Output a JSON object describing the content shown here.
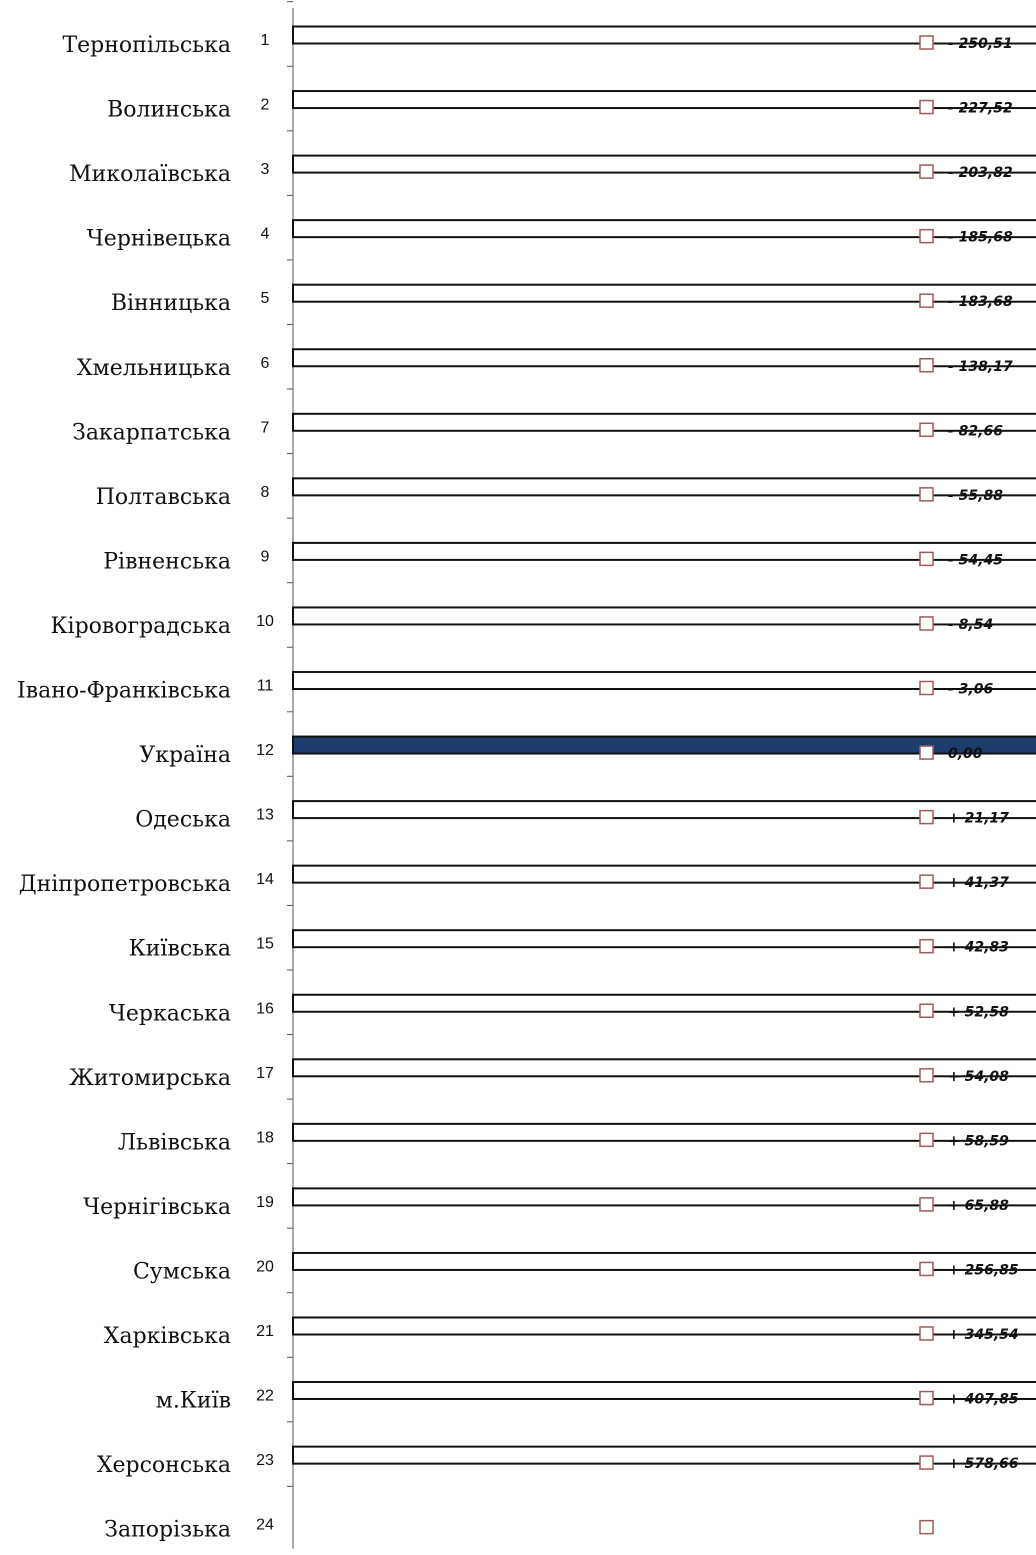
{
  "chart_data": {
    "type": "bar",
    "orientation": "horizontal",
    "categories": [
      "Тернопільська",
      "Волинська",
      "Миколаївська",
      "Чернівецька",
      "Вінницька",
      "Хмельницька",
      "Закарпатська",
      "Полтавська",
      "Рівненська",
      "Кіровоградська",
      "Івано-Франківська",
      "Україна",
      "Одеська",
      "Дніпропетровська",
      "Київська",
      "Черкаська",
      "Житомирська",
      "Львівська",
      "Чернігівська",
      "Сумська",
      "Харківська",
      "м.Київ",
      "Херсонська",
      "Запорізька"
    ],
    "ranks": [
      "1",
      "2",
      "3",
      "4",
      "5",
      "6",
      "7",
      "8",
      "9",
      "10",
      "11",
      "12",
      "13",
      "14",
      "15",
      "16",
      "17",
      "18",
      "19",
      "20",
      "21",
      "22",
      "23",
      "24"
    ],
    "values": [
      2004.11,
      2027.1,
      2050.8,
      2068.94,
      2070.94,
      2116.45,
      2171.96,
      2198.74,
      2200.17,
      2246.08,
      2251.56,
      2254.62,
      2275.79,
      2295.99,
      2297.45,
      2307.2,
      2308.7,
      2313.21,
      2320.5,
      2511.47,
      2600.16,
      2662.47,
      2833.28,
      null
    ],
    "value_labels": [
      "2004,11",
      "2027,10",
      "2050,80",
      "2068,94",
      "2070,94",
      "2116,45",
      "2171,96",
      "2198,74",
      "2200,17",
      "2246,08",
      "2251,56",
      "2254,62",
      "2275,79",
      "2295,99",
      "2297,45",
      "2307,20",
      "2308,70",
      "2313,21",
      "2320,50",
      "2511,47",
      "2600,16",
      "2662,47",
      "2833,28",
      ""
    ],
    "deviation_labels": [
      "- 250,51",
      "- 227,52",
      "- 203,82",
      "- 185,68",
      "- 183,68",
      "- 138,17",
      "- 82,66",
      "- 55,88",
      "- 54,45",
      "- 8,54",
      "- 3,06",
      "0,00",
      "+ 21,17",
      "+ 41,37",
      "+ 42,83",
      "+ 52,58",
      "+ 54,08",
      "+ 58,59",
      "+ 65,88",
      "+ 256,85",
      "+ 345,54",
      "+ 407,85",
      "+ 578,66",
      ""
    ],
    "highlight_category": "Україна",
    "colors": {
      "bar_fill": "#ffffff",
      "bar_stroke": "#111111",
      "highlight_fill": "#1f3c6e",
      "marker_stroke": "#a05a5a",
      "axis": "#555555"
    },
    "title": "",
    "xlabel": "",
    "ylabel": "",
    "grid": false,
    "legend": "none"
  }
}
